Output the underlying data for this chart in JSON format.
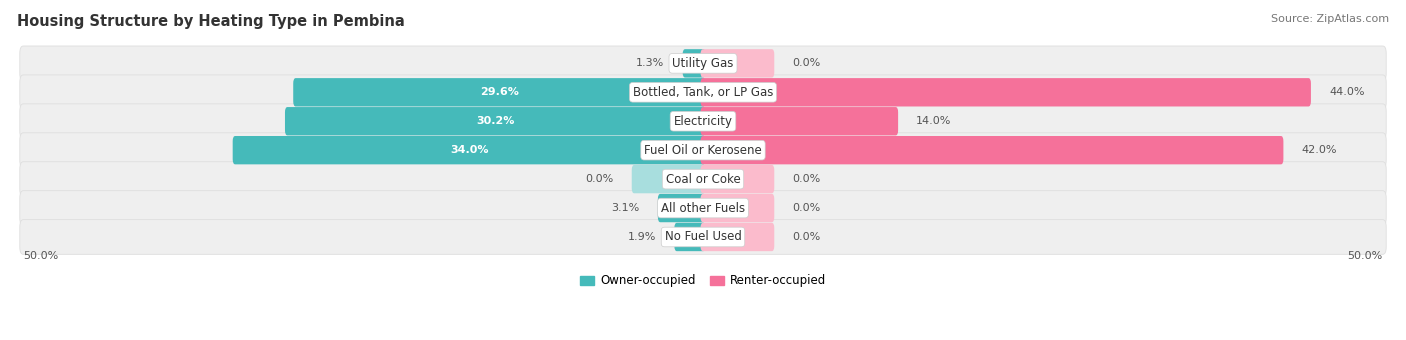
{
  "title": "Housing Structure by Heating Type in Pembina",
  "source": "Source: ZipAtlas.com",
  "categories": [
    "Utility Gas",
    "Bottled, Tank, or LP Gas",
    "Electricity",
    "Fuel Oil or Kerosene",
    "Coal or Coke",
    "All other Fuels",
    "No Fuel Used"
  ],
  "owner_values": [
    1.3,
    29.6,
    30.2,
    34.0,
    0.0,
    3.1,
    1.9
  ],
  "renter_values": [
    0.0,
    44.0,
    14.0,
    42.0,
    0.0,
    0.0,
    0.0
  ],
  "owner_color": "#45BABA",
  "renter_color": "#F5719A",
  "owner_color_light": "#A8DEDE",
  "renter_color_light": "#FBBBCC",
  "bar_bg_color": "#EFEFEF",
  "bar_bg_stroke": "#DEDEDE",
  "axis_max": 50.0,
  "stub_size": 5.0,
  "title_fontsize": 10.5,
  "source_fontsize": 8,
  "value_fontsize": 8,
  "category_fontsize": 8.5,
  "legend_fontsize": 8.5,
  "background_color": "#FFFFFF"
}
